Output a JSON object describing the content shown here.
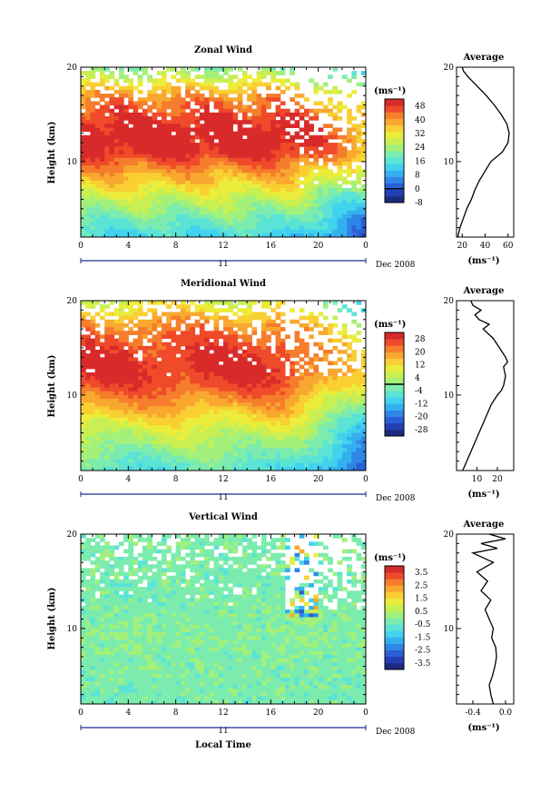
{
  "colors": {
    "colormap": [
      "#1c2a80",
      "#233fb3",
      "#2b5fd6",
      "#2f86e6",
      "#35b0ef",
      "#41d3ee",
      "#5be3d6",
      "#7cecae",
      "#a3f07a",
      "#c9ef52",
      "#ecec3a",
      "#f9cf33",
      "#f8a82f",
      "#f57d2c",
      "#ef4a2a",
      "#d92a2a"
    ],
    "background": "#ffffff",
    "profile_line": "#000000"
  },
  "chart_data": [
    {
      "type": "heatmap",
      "panel": "zonal",
      "title": "Zonal Wind",
      "ylabel": "Height (km)",
      "xlim": [
        0,
        24
      ],
      "ylim": [
        2,
        20
      ],
      "xticks": [
        "0",
        "4",
        "8",
        "12",
        "16",
        "20",
        "0"
      ],
      "yticks": [
        "10",
        "20"
      ],
      "date_day": "11",
      "date_label": "Dec 2008",
      "colorbar": {
        "unit": "(ms⁻¹)",
        "ticks": [
          "48",
          "40",
          "32",
          "24",
          "16",
          "8",
          "0",
          "-8"
        ],
        "range": [
          -8,
          52
        ],
        "divider": 0
      },
      "field_profile": [
        {
          "height": 2,
          "value": 14
        },
        {
          "height": 4,
          "value": 20
        },
        {
          "height": 6,
          "value": 27
        },
        {
          "height": 8,
          "value": 36
        },
        {
          "height": 9,
          "value": 40
        },
        {
          "height": 10,
          "value": 45
        },
        {
          "height": 11,
          "value": 50
        },
        {
          "height": 12,
          "value": 52
        },
        {
          "height": 13,
          "value": 52
        },
        {
          "height": 14,
          "value": 50
        },
        {
          "height": 15,
          "value": 47
        },
        {
          "height": 16,
          "value": 44
        },
        {
          "height": 17,
          "value": 40
        },
        {
          "height": 18,
          "value": 34
        },
        {
          "height": 19,
          "value": 27
        },
        {
          "height": 20,
          "value": 22
        }
      ],
      "average": {
        "title": "Average",
        "xlabel": "(ms⁻¹)",
        "xlim": [
          15,
          65
        ],
        "xticks": [
          "20",
          "40",
          "60"
        ],
        "yticks": [
          "10",
          "20"
        ],
        "profile": [
          {
            "height": 2.0,
            "value": 16
          },
          {
            "height": 3.0,
            "value": 18
          },
          {
            "height": 4.0,
            "value": 21
          },
          {
            "height": 5.0,
            "value": 24
          },
          {
            "height": 6.0,
            "value": 28
          },
          {
            "height": 7.0,
            "value": 31
          },
          {
            "height": 8.0,
            "value": 35
          },
          {
            "height": 9.0,
            "value": 40
          },
          {
            "height": 10.0,
            "value": 45
          },
          {
            "height": 11.0,
            "value": 55
          },
          {
            "height": 12.0,
            "value": 60
          },
          {
            "height": 13.0,
            "value": 61
          },
          {
            "height": 14.0,
            "value": 59
          },
          {
            "height": 15.0,
            "value": 54
          },
          {
            "height": 16.0,
            "value": 48
          },
          {
            "height": 17.0,
            "value": 41
          },
          {
            "height": 18.0,
            "value": 33
          },
          {
            "height": 19.0,
            "value": 25
          },
          {
            "height": 19.6,
            "value": 21
          },
          {
            "height": 20.0,
            "value": 20
          }
        ]
      }
    },
    {
      "type": "heatmap",
      "panel": "meridional",
      "title": "Meridional Wind",
      "ylabel": "Height (km)",
      "xlim": [
        0,
        24
      ],
      "ylim": [
        2,
        20
      ],
      "xticks": [
        "0",
        "4",
        "8",
        "12",
        "16",
        "20",
        "0"
      ],
      "yticks": [
        "10",
        "20"
      ],
      "date_day": "11",
      "date_label": "Dec 2008",
      "colorbar": {
        "unit": "(ms⁻¹)",
        "ticks": [
          "28",
          "20",
          "12",
          "4",
          "-4",
          "-12",
          "-20",
          "-28"
        ],
        "range": [
          -32,
          32
        ],
        "divider": 0
      },
      "field_profile": [
        {
          "height": 2,
          "value": -6
        },
        {
          "height": 4,
          "value": 0
        },
        {
          "height": 6,
          "value": 6
        },
        {
          "height": 8,
          "value": 14
        },
        {
          "height": 9,
          "value": 18
        },
        {
          "height": 10,
          "value": 22
        },
        {
          "height": 11,
          "value": 26
        },
        {
          "height": 12,
          "value": 28
        },
        {
          "height": 13,
          "value": 29
        },
        {
          "height": 14,
          "value": 28
        },
        {
          "height": 15,
          "value": 27
        },
        {
          "height": 16,
          "value": 24
        },
        {
          "height": 17,
          "value": 22
        },
        {
          "height": 18,
          "value": 18
        },
        {
          "height": 19,
          "value": 12
        },
        {
          "height": 20,
          "value": 8
        }
      ],
      "average": {
        "title": "Average",
        "xlabel": "(ms⁻¹)",
        "xlim": [
          0,
          28
        ],
        "xticks": [
          "10",
          "20"
        ],
        "yticks": [
          "10",
          "20"
        ],
        "profile": [
          {
            "height": 2.0,
            "value": 3
          },
          {
            "height": 3.0,
            "value": 5
          },
          {
            "height": 4.0,
            "value": 7
          },
          {
            "height": 5.0,
            "value": 9
          },
          {
            "height": 6.0,
            "value": 11
          },
          {
            "height": 7.0,
            "value": 13
          },
          {
            "height": 8.0,
            "value": 15
          },
          {
            "height": 9.0,
            "value": 17
          },
          {
            "height": 10.0,
            "value": 20
          },
          {
            "height": 10.5,
            "value": 22
          },
          {
            "height": 11.0,
            "value": 23
          },
          {
            "height": 12.0,
            "value": 24
          },
          {
            "height": 13.0,
            "value": 23
          },
          {
            "height": 13.5,
            "value": 25
          },
          {
            "height": 14.0,
            "value": 24
          },
          {
            "height": 15.0,
            "value": 21
          },
          {
            "height": 16.0,
            "value": 18
          },
          {
            "height": 17.0,
            "value": 13
          },
          {
            "height": 17.5,
            "value": 16
          },
          {
            "height": 18.0,
            "value": 11
          },
          {
            "height": 18.5,
            "value": 9
          },
          {
            "height": 19.0,
            "value": 12
          },
          {
            "height": 19.5,
            "value": 8
          },
          {
            "height": 20.0,
            "value": 7
          }
        ]
      }
    },
    {
      "type": "heatmap",
      "panel": "vertical",
      "title": "Vertical Wind",
      "ylabel": "Height (km)",
      "xlabel": "Local Time",
      "xlim": [
        0,
        24
      ],
      "ylim": [
        2,
        20
      ],
      "xticks": [
        "0",
        "4",
        "8",
        "12",
        "16",
        "20",
        "0"
      ],
      "yticks": [
        "10",
        "20"
      ],
      "date_day": "11",
      "date_label": "Dec 2008",
      "colorbar": {
        "unit": "(ms⁻¹)",
        "ticks": [
          "3.5",
          "2.5",
          "1.5",
          "0.5",
          "-0.5",
          "-1.5",
          "-2.5",
          "-3.5"
        ],
        "range": [
          -4,
          4
        ],
        "divider": null
      },
      "field_profile": [
        {
          "height": 2,
          "value": -0.3
        },
        {
          "height": 6,
          "value": -0.2
        },
        {
          "height": 10,
          "value": -0.1
        },
        {
          "height": 14,
          "value": -0.3
        },
        {
          "height": 18,
          "value": -0.2
        },
        {
          "height": 20,
          "value": -0.2
        }
      ],
      "average": {
        "title": "Average",
        "xlabel": "(ms⁻¹)",
        "xlim": [
          -0.6,
          0.1
        ],
        "xticks": [
          "-0.4",
          "0.0"
        ],
        "yticks": [
          "10",
          "20"
        ],
        "profile": [
          {
            "height": 2.0,
            "value": -0.15
          },
          {
            "height": 3.0,
            "value": -0.18
          },
          {
            "height": 4.0,
            "value": -0.2
          },
          {
            "height": 5.0,
            "value": -0.16
          },
          {
            "height": 6.0,
            "value": -0.13
          },
          {
            "height": 7.0,
            "value": -0.11
          },
          {
            "height": 8.0,
            "value": -0.12
          },
          {
            "height": 9.0,
            "value": -0.17
          },
          {
            "height": 10.0,
            "value": -0.15
          },
          {
            "height": 11.0,
            "value": -0.2
          },
          {
            "height": 12.0,
            "value": -0.25
          },
          {
            "height": 13.0,
            "value": -0.18
          },
          {
            "height": 14.0,
            "value": -0.3
          },
          {
            "height": 15.0,
            "value": -0.22
          },
          {
            "height": 16.0,
            "value": -0.35
          },
          {
            "height": 17.0,
            "value": -0.15
          },
          {
            "height": 18.0,
            "value": -0.4
          },
          {
            "height": 18.5,
            "value": -0.1
          },
          {
            "height": 19.0,
            "value": -0.3
          },
          {
            "height": 19.5,
            "value": 0.0
          },
          {
            "height": 20.0,
            "value": -0.2
          }
        ]
      }
    }
  ]
}
